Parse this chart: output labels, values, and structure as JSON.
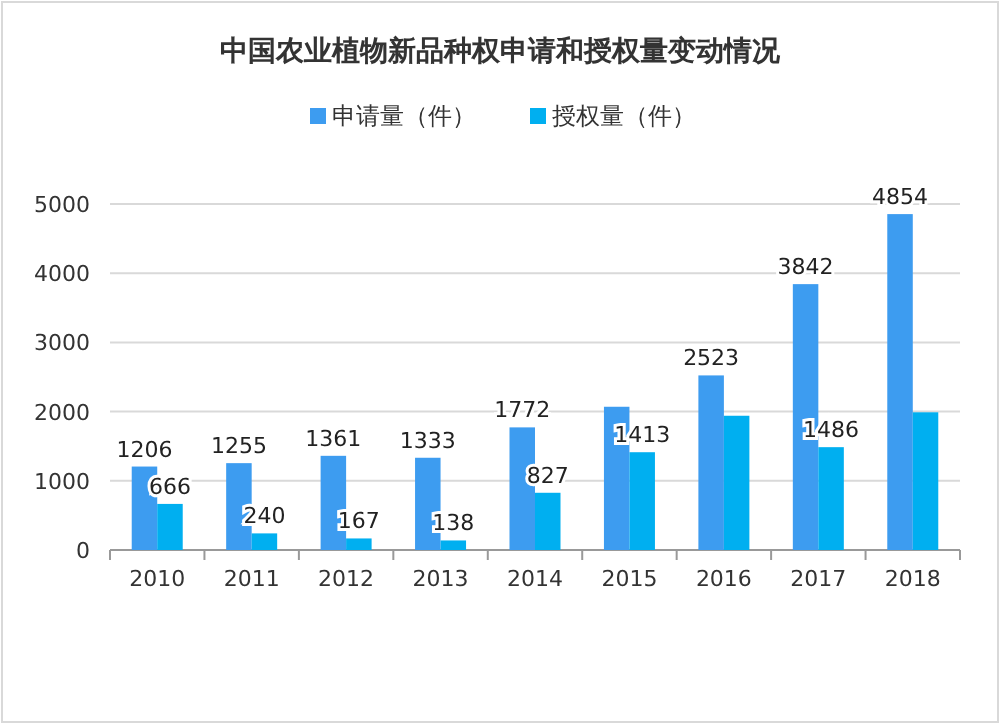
{
  "chart_data": {
    "type": "bar",
    "title": "中国农业植物新品种权申请和授权量变动情况",
    "categories": [
      "2010",
      "2011",
      "2012",
      "2013",
      "2014",
      "2015",
      "2016",
      "2017",
      "2018"
    ],
    "series": [
      {
        "name": "申请量（件）",
        "color": "#3d9cf0",
        "values": [
          1206,
          1255,
          1361,
          1333,
          1772,
          2070,
          2523,
          3842,
          4854
        ],
        "value_labels": [
          "1206",
          "1255",
          "1361",
          "1333",
          "1772",
          null,
          "2523",
          "3842",
          "4854"
        ]
      },
      {
        "name": "授权量（件）",
        "color": "#00aff0",
        "values": [
          666,
          240,
          167,
          138,
          827,
          1413,
          1940,
          1486,
          1990
        ],
        "value_labels": [
          "666",
          "240",
          "167",
          "138",
          "827",
          "1413",
          null,
          "1486",
          null
        ]
      }
    ],
    "ylim": [
      0,
      5000
    ],
    "yticks": [
      0,
      1000,
      2000,
      3000,
      4000,
      5000
    ],
    "grid": "y",
    "legend": "top"
  }
}
